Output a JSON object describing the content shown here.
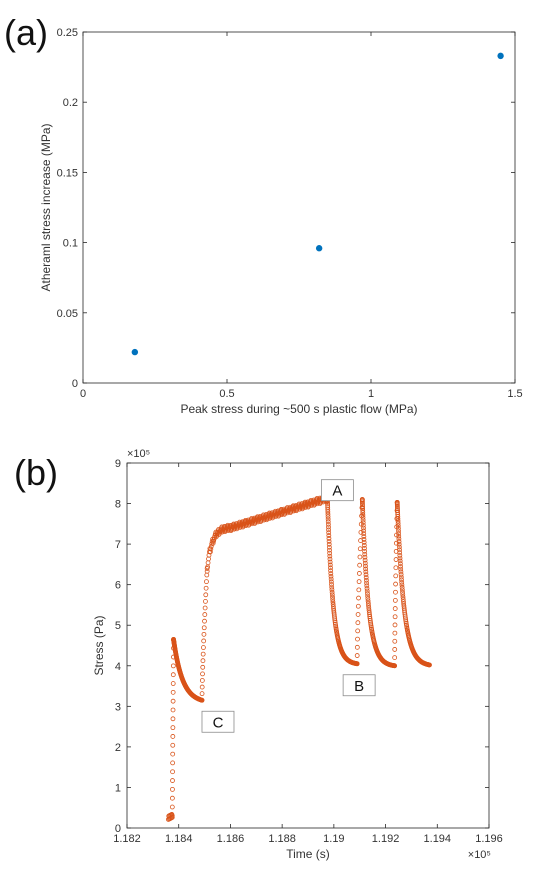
{
  "panels": {
    "a_label": "(a)",
    "b_label": "(b)"
  },
  "chart_data": [
    {
      "type": "scatter",
      "xlabel": "Peak stress during ~500 s plastic flow (MPa)",
      "ylabel": "Atheraml stress increase (MPa)",
      "xlim": [
        0,
        1.5
      ],
      "ylim": [
        0,
        0.25
      ],
      "xticks": [
        0,
        0.5,
        1,
        1.5
      ],
      "xtick_labels": [
        "0",
        "0.5",
        "1",
        "1.5"
      ],
      "yticks": [
        0,
        0.05,
        0.1,
        0.15,
        0.2,
        0.25
      ],
      "ytick_labels": [
        "0",
        "0.05",
        "0.1",
        "0.15",
        "0.2",
        "0.25"
      ],
      "color": "#0072BD",
      "series": [
        {
          "x": [
            0.18,
            0.82,
            1.45
          ],
          "y": [
            0.022,
            0.096,
            0.233
          ]
        }
      ]
    },
    {
      "type": "scatter",
      "xlabel": "Time (s)",
      "ylabel": "Stress (Pa)",
      "x_exponent": "×10⁵",
      "y_exponent": "×10⁵",
      "xlim": [
        118200,
        119600
      ],
      "ylim": [
        0,
        900000
      ],
      "xticks": [
        118200,
        118400,
        118600,
        118800,
        119000,
        119200,
        119400,
        119600
      ],
      "xtick_labels": [
        "1.182",
        "1.184",
        "1.186",
        "1.188",
        "1.19",
        "1.192",
        "1.194",
        "1.196"
      ],
      "yticks": [
        0,
        100000,
        200000,
        300000,
        400000,
        500000,
        600000,
        700000,
        800000,
        900000
      ],
      "ytick_labels": [
        "0",
        "1",
        "2",
        "3",
        "4",
        "5",
        "6",
        "7",
        "8",
        "9"
      ],
      "color": "#D95319",
      "segments": [
        {
          "kind": "flat",
          "t0": 118360,
          "t1": 118375,
          "v0": 25000,
          "v1": 30000
        },
        {
          "kind": "jump",
          "t0": 118375,
          "t1": 118380,
          "v0": 30000,
          "v1": 465000
        },
        {
          "kind": "relax",
          "t0": 118380,
          "t1": 118490,
          "v0": 465000,
          "v1": 315000,
          "tau": 35
        },
        {
          "kind": "load",
          "t0": 118490,
          "t1": 118510,
          "v0": 315000,
          "v1": 640000
        },
        {
          "kind": "plastic",
          "t0": 118510,
          "t1": 118970,
          "v0": 640000,
          "v1": 812000,
          "tau": 20
        },
        {
          "kind": "relax",
          "t0": 118975,
          "t1": 119090,
          "v0": 812000,
          "v1": 405000,
          "tau": 22
        },
        {
          "kind": "load",
          "t0": 119090,
          "t1": 119110,
          "v0": 405000,
          "v1": 810000
        },
        {
          "kind": "relax",
          "t0": 119110,
          "t1": 119235,
          "v0": 810000,
          "v1": 400000,
          "tau": 24
        },
        {
          "kind": "load",
          "t0": 119235,
          "t1": 119245,
          "v0": 400000,
          "v1": 803000
        },
        {
          "kind": "relax",
          "t0": 119245,
          "t1": 119370,
          "v0": 803000,
          "v1": 402000,
          "tau": 26
        }
      ],
      "annotations": [
        {
          "text": "A",
          "x": 118975,
          "y": 812000
        },
        {
          "text": "B",
          "x": 119090,
          "y": 405000
        },
        {
          "text": "C",
          "x": 118490,
          "y": 315000
        }
      ]
    }
  ]
}
